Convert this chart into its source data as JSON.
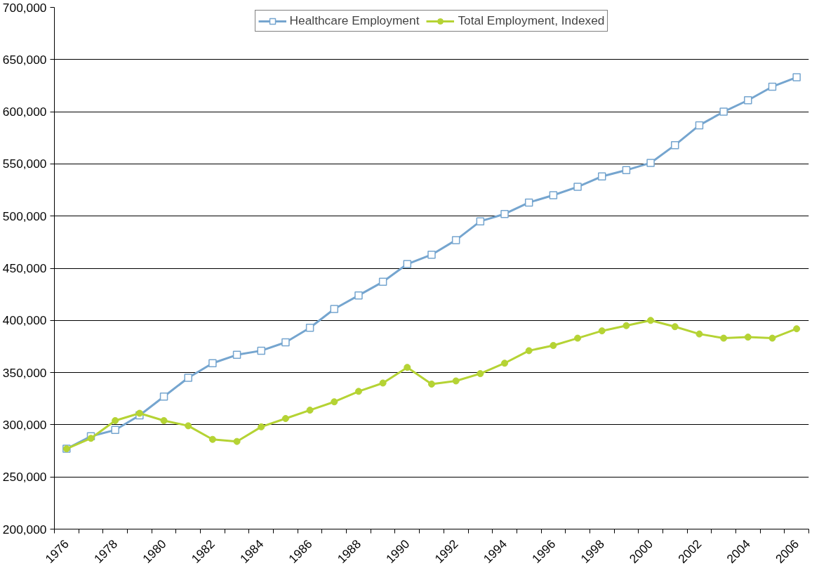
{
  "chart_data": {
    "type": "line",
    "categories": [
      "1976",
      null,
      "1978",
      null,
      "1980",
      null,
      "1982",
      null,
      "1984",
      null,
      "1986",
      null,
      "1988",
      null,
      "1990",
      null,
      "1992",
      null,
      "1994",
      null,
      "1996",
      null,
      "1998",
      null,
      "2000",
      null,
      "2002",
      null,
      "2004",
      null,
      "2006"
    ],
    "series": [
      {
        "name": "Healthcare Employment",
        "color": "#75a5cf",
        "marker": "square",
        "values": [
          277000,
          289000,
          295000,
          309000,
          327000,
          345000,
          359000,
          367000,
          371000,
          379000,
          393000,
          411000,
          424000,
          437000,
          454000,
          463000,
          477000,
          495000,
          502000,
          513000,
          520000,
          528000,
          538000,
          544000,
          551000,
          568000,
          587000,
          600000,
          611000,
          624000,
          633000
        ]
      },
      {
        "name": "Total Employment, Indexed",
        "color": "#b5d334",
        "marker": "circle",
        "values": [
          277000,
          287000,
          304000,
          311000,
          304000,
          299000,
          286000,
          284000,
          298000,
          306000,
          314000,
          322000,
          332000,
          340000,
          355000,
          339000,
          342000,
          349000,
          359000,
          371000,
          376000,
          383000,
          390000,
          395000,
          400000,
          394000,
          387000,
          383000,
          384000,
          383000,
          392000
        ]
      }
    ],
    "ylim": [
      200000,
      700000
    ],
    "yticks": [
      {
        "value": 200000,
        "label": "200,000"
      },
      {
        "value": 250000,
        "label": "250,000"
      },
      {
        "value": 300000,
        "label": "300,000"
      },
      {
        "value": 350000,
        "label": "350,000"
      },
      {
        "value": 400000,
        "label": "400,000"
      },
      {
        "value": 450000,
        "label": "450,000"
      },
      {
        "value": 500000,
        "label": "500,000"
      },
      {
        "value": 550000,
        "label": "550,000"
      },
      {
        "value": 600000,
        "label": "600,000"
      },
      {
        "value": 650000,
        "label": "650,000"
      },
      {
        "value": 700000,
        "label": "700,000"
      }
    ],
    "grid": "y",
    "legend": "top",
    "line_style": "solid"
  }
}
